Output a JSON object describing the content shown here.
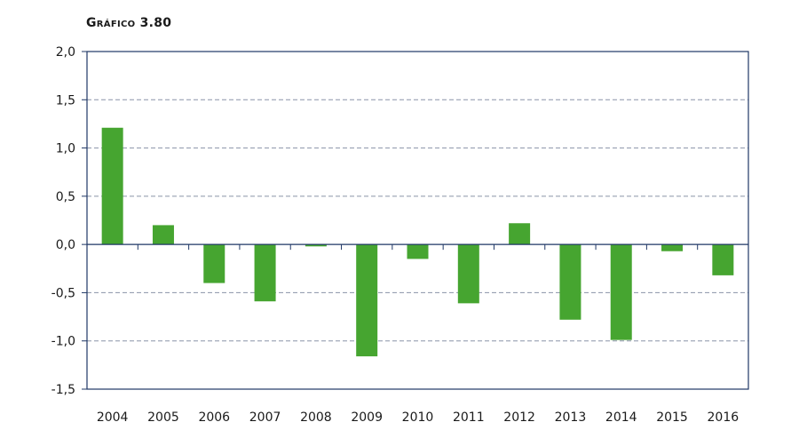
{
  "chart_data": {
    "type": "bar",
    "title": "Gráfico 3.80",
    "xlabel": "",
    "ylabel": "",
    "categories": [
      "2004",
      "2005",
      "2006",
      "2007",
      "2008",
      "2009",
      "2010",
      "2011",
      "2012",
      "2013",
      "2014",
      "2015",
      "2016"
    ],
    "series": [
      {
        "values": [
          1.21,
          0.2,
          -0.4,
          -0.59,
          -0.02,
          -1.16,
          -0.15,
          -0.61,
          0.22,
          -0.78,
          -0.99,
          -0.07,
          -0.32
        ]
      }
    ],
    "ylim": [
      -1.5,
      2.0
    ],
    "yticks": [
      "2,0",
      "1,5",
      "1,0",
      "0,5",
      "0,0",
      "-0,5",
      "-1,0",
      "-1,5"
    ],
    "ytick_values": [
      2.0,
      1.5,
      1.0,
      0.5,
      0.0,
      -0.5,
      -1.0,
      -1.5
    ],
    "grid": true,
    "legend": "none",
    "bar_color": "#46a530",
    "axis_color": "#1f3766",
    "grid_color": "#8a93a8"
  }
}
